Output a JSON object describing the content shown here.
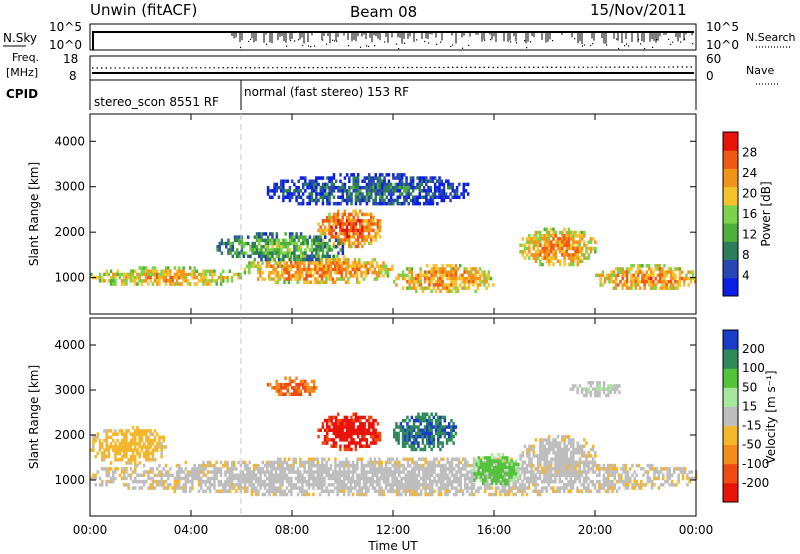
{
  "header": {
    "station": "Unwin (fitACF)",
    "beam": "Beam 08",
    "date": "15/Nov/2011"
  },
  "nsky_panel": {
    "left_label": "N.Sky",
    "right_label": "N.Search",
    "ticks_left": [
      "10^5",
      "10^0"
    ],
    "ticks_right": [
      "10^5",
      "10^0"
    ]
  },
  "freq_panel": {
    "left_label_1": "Freq.",
    "left_label_2": "[MHz]",
    "right_label": "Nave",
    "ticks_left": [
      "18",
      "8"
    ],
    "ticks_right": [
      "60",
      "0"
    ]
  },
  "cpid_panel": {
    "label": "CPID",
    "segments": [
      {
        "text": "stereo_scon 8551 RF",
        "start": 0,
        "end": 6
      },
      {
        "text": "normal (fast stereo) 153 RF",
        "start": 6,
        "end": 24
      }
    ]
  },
  "chart_data": [
    {
      "type": "heatmap",
      "name": "power",
      "ylabel": "Slant Range [km]",
      "yticks": [
        "1000",
        "2000",
        "3000",
        "4000"
      ],
      "ylim": [
        200,
        4600
      ],
      "xlim": [
        0,
        24
      ],
      "colorbar": {
        "label": "Power [dB]",
        "tick_labels": [
          "4",
          "8",
          "12",
          "16",
          "20",
          "24",
          "28"
        ],
        "range": [
          0,
          32
        ],
        "colors": [
          "#0a1ee6",
          "#2846b4",
          "#2e7d5a",
          "#4fae3c",
          "#7cd34a",
          "#f3c22c",
          "#f2941c",
          "#ef5a14",
          "#e8140a"
        ]
      },
      "echo_regions": [
        {
          "t0": 0,
          "t1": 6,
          "r0": 850,
          "r1": 1250,
          "level": 22
        },
        {
          "t0": 6,
          "t1": 12,
          "r0": 900,
          "r1": 1500,
          "level": 24
        },
        {
          "t0": 9,
          "t1": 11.5,
          "r0": 1700,
          "r1": 2500,
          "level": 27
        },
        {
          "t0": 5,
          "t1": 10,
          "r0": 1400,
          "r1": 2000,
          "level": 14
        },
        {
          "t0": 12,
          "t1": 16,
          "r0": 700,
          "r1": 1300,
          "level": 24
        },
        {
          "t0": 17,
          "t1": 20,
          "r0": 1300,
          "r1": 2100,
          "level": 24
        },
        {
          "t0": 20,
          "t1": 24,
          "r0": 750,
          "r1": 1300,
          "level": 24
        },
        {
          "t0": 7,
          "t1": 15,
          "r0": 2600,
          "r1": 3300,
          "level": 8
        }
      ]
    },
    {
      "type": "heatmap",
      "name": "velocity",
      "ylabel": "Slant Range [km]",
      "yticks": [
        "1000",
        "2000",
        "3000",
        "4000"
      ],
      "ylim": [
        200,
        4600
      ],
      "xlim": [
        0,
        24
      ],
      "xlabel": "Time UT",
      "xticks": [
        "00:00",
        "04:00",
        "08:00",
        "12:00",
        "16:00",
        "20:00",
        "00:00"
      ],
      "colorbar": {
        "label": "Velocity [m s⁻¹]",
        "tick_labels": [
          "200",
          "100",
          "50",
          "15",
          "-15",
          "-50",
          "-100",
          "-200"
        ],
        "range": [
          -250,
          250
        ],
        "colors": [
          "#e8140a",
          "#ef4a14",
          "#f28a1c",
          "#f3b62c",
          "#bebebe",
          "#a8e6a0",
          "#55c23c",
          "#2e8a5a",
          "#1a3cc8"
        ]
      },
      "echo_regions": [
        {
          "t0": 0,
          "t1": 24,
          "r0": 700,
          "r1": 1500,
          "velocity": 0
        },
        {
          "t0": 9,
          "t1": 11.5,
          "r0": 1700,
          "r1": 2500,
          "velocity": -220
        },
        {
          "t0": 12,
          "t1": 14.5,
          "r0": 1700,
          "r1": 2500,
          "velocity": 200
        },
        {
          "t0": 15,
          "t1": 17,
          "r0": 900,
          "r1": 1600,
          "velocity": 110
        },
        {
          "t0": 17,
          "t1": 20,
          "r0": 1200,
          "r1": 2000,
          "velocity": 0
        },
        {
          "t0": 0,
          "t1": 3,
          "r0": 1400,
          "r1": 2200,
          "velocity": -60
        },
        {
          "t0": 7,
          "t1": 9,
          "r0": 2900,
          "r1": 3300,
          "velocity": -150
        },
        {
          "t0": 19,
          "t1": 21,
          "r0": 2900,
          "r1": 3200,
          "velocity": 30
        }
      ]
    }
  ]
}
